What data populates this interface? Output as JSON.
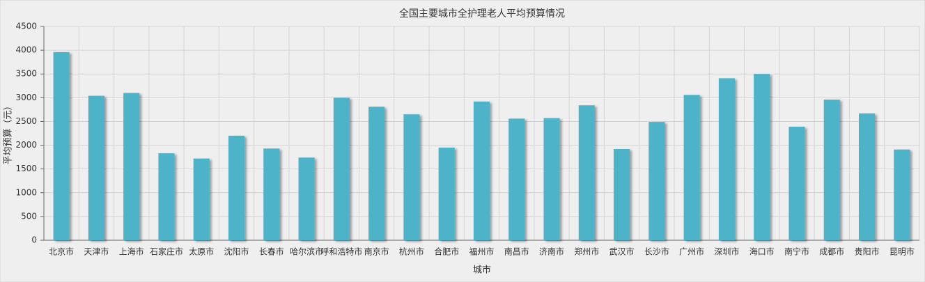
{
  "chart_data": {
    "type": "bar",
    "title": "全国主要城市全护理老人平均预算情况",
    "x_label": "城市",
    "y_label": "平均预算（元）",
    "categories": [
      "北京市",
      "天津市",
      "上海市",
      "石家庄市",
      "太原市",
      "沈阳市",
      "长春市",
      "哈尔滨市",
      "呼和浩特市",
      "南京市",
      "杭州市",
      "合肥市",
      "福州市",
      "南昌市",
      "济南市",
      "郑州市",
      "武汉市",
      "长沙市",
      "广州市",
      "深圳市",
      "海口市",
      "南宁市",
      "成都市",
      "贵阳市",
      "昆明市"
    ],
    "values": [
      3960,
      3040,
      3100,
      1830,
      1720,
      2200,
      1930,
      1740,
      3000,
      2810,
      2650,
      1950,
      2920,
      2560,
      2570,
      2840,
      1920,
      2490,
      3060,
      3410,
      3500,
      2390,
      2960,
      2670,
      1910
    ],
    "color": "#4db3c8",
    "ylim": [
      0,
      4500
    ],
    "yticks": [
      0,
      500,
      1000,
      1500,
      2000,
      2500,
      3000,
      3500,
      4000,
      4500
    ],
    "grid": true
  }
}
